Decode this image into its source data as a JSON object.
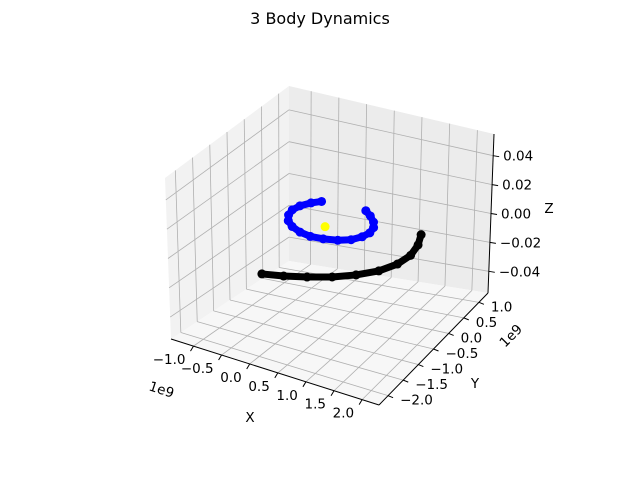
{
  "chart_data": {
    "type": "scatter3d",
    "title": "3 Body Dynamics",
    "xlabel": "X",
    "ylabel": "Y",
    "zlabel": "Z",
    "x_ticks": [
      "−1.0",
      "−0.5",
      "0.0",
      "0.5",
      "1.0",
      "1.5",
      "2.0"
    ],
    "y_ticks": [
      "−2.0",
      "−1.5",
      "−1.0",
      "−0.5",
      "0.0",
      "0.5",
      "1.0"
    ],
    "z_ticks": [
      "−0.04",
      "−0.02",
      "0.00",
      "0.02",
      "0.04"
    ],
    "x_offset": "1e9",
    "y_offset": "1e9",
    "xlim": [
      -1.4,
      2.3
    ],
    "ylim": [
      -2.3,
      1.3
    ],
    "zlim": [
      -0.055,
      0.055
    ],
    "grid": true,
    "series": [
      {
        "color": "#0000ff",
        "marker": "circle",
        "points": [
          [
            0.2,
            0.9,
            0.0
          ],
          [
            0.35,
            0.78,
            0.0
          ],
          [
            0.5,
            0.62,
            0.0
          ],
          [
            0.6,
            0.45,
            0.0
          ],
          [
            0.65,
            0.25,
            0.0
          ],
          [
            0.63,
            0.05,
            0.0
          ],
          [
            0.55,
            -0.15,
            0.0
          ],
          [
            0.4,
            -0.3,
            0.0
          ],
          [
            0.2,
            -0.4,
            0.0
          ],
          [
            0.0,
            -0.45,
            0.0
          ],
          [
            -0.2,
            -0.42,
            0.0
          ],
          [
            -0.4,
            -0.32,
            0.0
          ],
          [
            -0.55,
            -0.18,
            0.0
          ],
          [
            -0.65,
            0.0,
            0.0
          ],
          [
            -0.7,
            0.2,
            0.0
          ],
          [
            -0.68,
            0.4,
            0.0
          ],
          [
            -0.6,
            0.6,
            0.0
          ],
          [
            -0.5,
            0.75,
            0.0
          ]
        ]
      },
      {
        "color": "#000000",
        "marker": "circle",
        "points": [
          [
            0.1,
            -2.1,
            0.0
          ],
          [
            0.4,
            -1.95,
            0.0
          ],
          [
            0.7,
            -1.75,
            0.0
          ],
          [
            1.0,
            -1.5,
            0.0
          ],
          [
            1.25,
            -1.2,
            0.0
          ],
          [
            1.45,
            -0.85,
            0.0
          ],
          [
            1.55,
            -0.45,
            0.0
          ],
          [
            1.55,
            -0.05,
            0.0
          ],
          [
            1.45,
            0.35,
            0.0
          ],
          [
            1.3,
            0.7,
            0.0
          ]
        ]
      },
      {
        "color": "#ffff00",
        "marker": "circle",
        "points": [
          [
            0.0,
            0.0,
            0.0
          ]
        ]
      }
    ]
  }
}
